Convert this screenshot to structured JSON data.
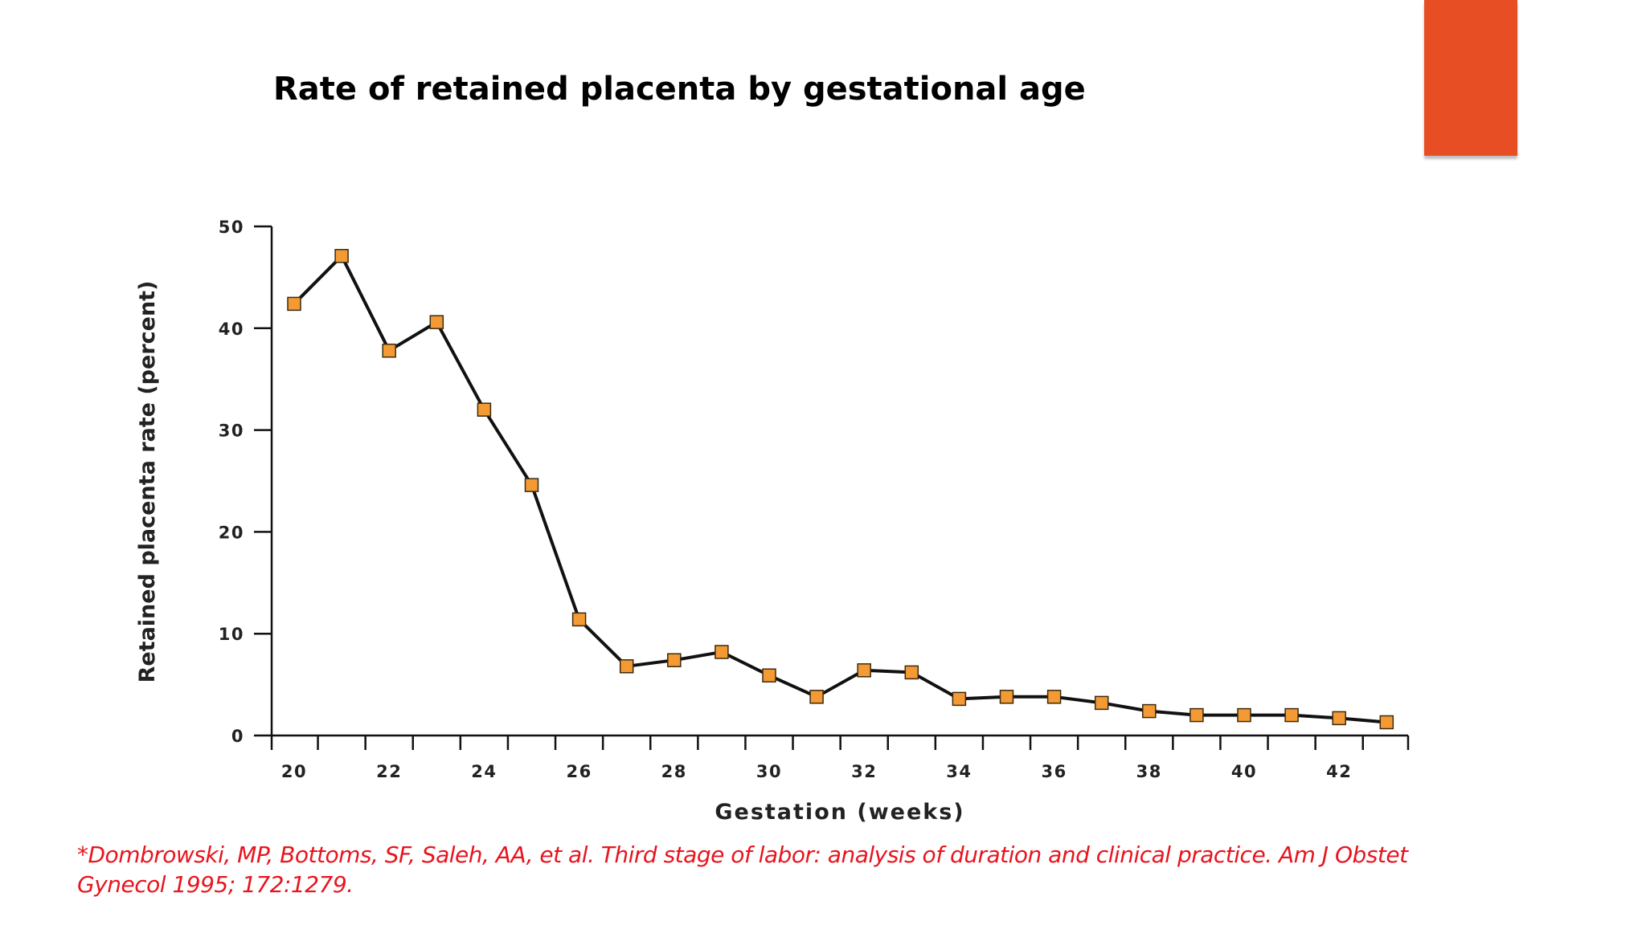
{
  "slide": {
    "title": "Rate of retained placenta by gestational age",
    "citation": "*Dombrowski, MP, Bottoms, SF, Saleh, AA, et al. Third stage of labor: analysis of duration and clinical practice. Am J Obstet Gynecol 1995; 172:1279.",
    "accent_color": "#e84e24",
    "citation_color": "#e8141e"
  },
  "chart_data": {
    "type": "line",
    "title": "Rate of retained placenta by gestational age",
    "xlabel": "Gestation (weeks)",
    "ylabel": "Retained placenta rate (percent)",
    "x": [
      20,
      21,
      22,
      23,
      24,
      25,
      26,
      27,
      28,
      29,
      30,
      31,
      32,
      33,
      34,
      35,
      36,
      37,
      38,
      39,
      40,
      41,
      42,
      43
    ],
    "series": [
      {
        "values": [
          42.4,
          47.1,
          37.8,
          40.6,
          32.0,
          24.6,
          11.4,
          6.8,
          7.4,
          8.2,
          5.9,
          3.8,
          6.4,
          6.2,
          3.6,
          3.8,
          3.8,
          3.2,
          2.4,
          2.0,
          2.0,
          2.0,
          1.7,
          1.3
        ],
        "line_color": "#111111",
        "marker": "square",
        "marker_color": "#f39a34"
      }
    ],
    "xlim": [
      20,
      43
    ],
    "ylim": [
      0,
      50
    ],
    "x_ticks": [
      20,
      22,
      24,
      26,
      28,
      30,
      32,
      34,
      36,
      38,
      40,
      42
    ],
    "y_ticks": [
      0,
      10,
      20,
      30,
      40,
      50
    ],
    "grid": false,
    "legend": "none"
  }
}
